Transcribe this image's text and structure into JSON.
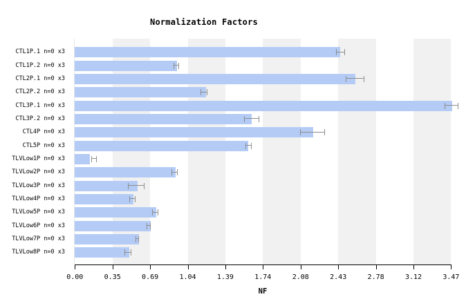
{
  "title": "Normalization Factors",
  "x_axis": {
    "label": "NF",
    "tick_labels": [
      "0.00",
      "0.35",
      "0.69",
      "1.04",
      "1.39",
      "1.74",
      "2.08",
      "2.43",
      "2.78",
      "3.12",
      "3.47"
    ]
  },
  "colors": {
    "bar": "#b4cbf5",
    "error": "#8c8c8c",
    "band": "#f1f1f1",
    "axis": "#000000",
    "plot_edge": "#e6e6e6",
    "background": "#ffffff"
  },
  "chart_data": {
    "type": "bar",
    "orientation": "horizontal",
    "title": "Normalization Factors",
    "xlabel": "NF",
    "xlim": [
      0,
      3.47
    ],
    "x_tick_labels": [
      "0.00",
      "0.35",
      "0.69",
      "1.04",
      "1.39",
      "1.74",
      "2.08",
      "2.43",
      "2.78",
      "3.12",
      "3.47"
    ],
    "grid": "alternating-vertical-bands",
    "legend": null,
    "categories": [
      "CTL1P.1 n=0 x3",
      "CTL1P.2 n=0 x3",
      "CTL2P.1 n=0 x3",
      "CTL2P.2 n=0 x3",
      "CTL3P.1 n=0 x3",
      "CTL3P.2 n=0 x3",
      "CTL4P n=0 x3",
      "CTL5P n=0 x3",
      "TLVLow1P n=0 x3",
      "TLVLow2P n=0 x3",
      "TLVLow3P n=0 x3",
      "TLVLow4P n=0 x3",
      "TLVLow5P n=0 x3",
      "TLVLow6P n=0 x3",
      "TLVLow7P n=0 x3",
      "TLVLow8P n=0 x3"
    ],
    "values": [
      2.45,
      0.94,
      2.59,
      1.21,
      3.48,
      1.63,
      2.2,
      1.6,
      0.14,
      0.93,
      0.58,
      0.54,
      0.75,
      0.7,
      0.59,
      0.5
    ],
    "error_low": [
      2.41,
      0.91,
      2.5,
      1.16,
      3.41,
      1.56,
      2.08,
      1.57,
      0.15,
      0.89,
      0.49,
      0.5,
      0.71,
      0.66,
      0.56,
      0.46
    ],
    "error_high": [
      2.49,
      0.96,
      2.67,
      1.22,
      3.54,
      1.7,
      2.31,
      1.63,
      0.2,
      0.95,
      0.64,
      0.56,
      0.77,
      0.7,
      0.59,
      0.52
    ]
  }
}
